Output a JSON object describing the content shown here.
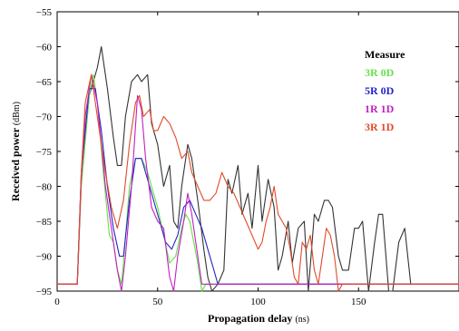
{
  "chart_data": {
    "type": "line",
    "xlabel": "Propagation delay",
    "xlabel_unit": "(ns)",
    "ylabel": "Received power",
    "ylabel_unit": "(dBm)",
    "xlim": [
      0,
      200
    ],
    "ylim": [
      -95,
      -55
    ],
    "xticks": [
      0,
      50,
      100,
      150
    ],
    "yticks": [
      -55,
      -60,
      -65,
      -70,
      -75,
      -80,
      -85,
      -90,
      -95
    ],
    "grid": false,
    "legend": {
      "title": "Measure",
      "placement": "top-right",
      "entries": [
        {
          "label": "3R 0D",
          "color": "#66e04a"
        },
        {
          "label": "5R 0D",
          "color": "#2424c8"
        },
        {
          "label": "1R 1D",
          "color": "#c020c0"
        },
        {
          "label": "3R 1D",
          "color": "#e04a2a"
        }
      ]
    },
    "series": [
      {
        "key": "measure",
        "color": "#333333",
        "points": [
          [
            0,
            -94
          ],
          [
            10,
            -94
          ],
          [
            12,
            -79
          ],
          [
            16,
            -67
          ],
          [
            20,
            -63
          ],
          [
            22,
            -60
          ],
          [
            25,
            -66
          ],
          [
            28,
            -73
          ],
          [
            30,
            -77
          ],
          [
            32,
            -77
          ],
          [
            34,
            -70
          ],
          [
            37,
            -65
          ],
          [
            40,
            -64
          ],
          [
            42,
            -65
          ],
          [
            45,
            -64
          ],
          [
            47,
            -71
          ],
          [
            50,
            -74
          ],
          [
            53,
            -80
          ],
          [
            56,
            -77
          ],
          [
            58,
            -85
          ],
          [
            60,
            -86
          ],
          [
            62,
            -80
          ],
          [
            65,
            -74
          ],
          [
            67,
            -76
          ],
          [
            70,
            -82
          ],
          [
            73,
            -89
          ],
          [
            75,
            -93
          ],
          [
            77,
            -95
          ],
          [
            80,
            -94
          ],
          [
            83,
            -92
          ],
          [
            85,
            -79
          ],
          [
            87,
            -81
          ],
          [
            90,
            -77
          ],
          [
            92,
            -84
          ],
          [
            95,
            -81
          ],
          [
            97,
            -86
          ],
          [
            100,
            -77
          ],
          [
            102,
            -85
          ],
          [
            105,
            -79
          ],
          [
            108,
            -83
          ],
          [
            110,
            -92
          ],
          [
            112,
            -90
          ],
          [
            115,
            -85
          ],
          [
            117,
            -91
          ],
          [
            120,
            -86
          ],
          [
            123,
            -85
          ],
          [
            125,
            -95
          ],
          [
            128,
            -84
          ],
          [
            130,
            -85
          ],
          [
            133,
            -82
          ],
          [
            135,
            -82
          ],
          [
            137,
            -83
          ],
          [
            140,
            -90
          ],
          [
            142,
            -92
          ],
          [
            145,
            -92
          ],
          [
            148,
            -86
          ],
          [
            150,
            -86
          ],
          [
            152,
            -85
          ],
          [
            155,
            -95
          ],
          [
            158,
            -88
          ],
          [
            160,
            -84
          ],
          [
            162,
            -84
          ],
          [
            165,
            -95
          ],
          [
            167,
            -95
          ],
          [
            170,
            -88
          ],
          [
            173,
            -86
          ],
          [
            176,
            -94
          ],
          [
            200,
            -94
          ]
        ]
      },
      {
        "key": "3R 0D",
        "color": "#66e04a",
        "points": [
          [
            0,
            -94
          ],
          [
            10,
            -94
          ],
          [
            12,
            -80
          ],
          [
            16,
            -67
          ],
          [
            18,
            -64
          ],
          [
            20,
            -68
          ],
          [
            23,
            -78
          ],
          [
            26,
            -87
          ],
          [
            28,
            -88
          ],
          [
            30,
            -92
          ],
          [
            32,
            -94
          ],
          [
            33,
            -91
          ],
          [
            36,
            -80
          ],
          [
            39,
            -76
          ],
          [
            42,
            -76
          ],
          [
            45,
            -78
          ],
          [
            48,
            -81
          ],
          [
            50,
            -83
          ],
          [
            53,
            -87
          ],
          [
            56,
            -91
          ],
          [
            59,
            -90
          ],
          [
            62,
            -86
          ],
          [
            64,
            -84
          ],
          [
            66,
            -85
          ],
          [
            68,
            -88
          ],
          [
            70,
            -91
          ],
          [
            72,
            -95
          ],
          [
            74,
            -94
          ],
          [
            200,
            -94
          ]
        ]
      },
      {
        "key": "5R 0D",
        "color": "#2424c8",
        "points": [
          [
            0,
            -94
          ],
          [
            10,
            -94
          ],
          [
            12,
            -78
          ],
          [
            16,
            -66
          ],
          [
            19,
            -66
          ],
          [
            22,
            -72
          ],
          [
            25,
            -80
          ],
          [
            28,
            -86
          ],
          [
            31,
            -90
          ],
          [
            33,
            -90
          ],
          [
            36,
            -82
          ],
          [
            39,
            -76
          ],
          [
            42,
            -76
          ],
          [
            45,
            -79
          ],
          [
            48,
            -82
          ],
          [
            51,
            -85
          ],
          [
            54,
            -88
          ],
          [
            57,
            -89
          ],
          [
            60,
            -87
          ],
          [
            63,
            -83
          ],
          [
            66,
            -82
          ],
          [
            69,
            -84
          ],
          [
            72,
            -86
          ],
          [
            75,
            -89
          ],
          [
            78,
            -92
          ],
          [
            80,
            -94
          ],
          [
            200,
            -94
          ]
        ]
      },
      {
        "key": "1R 1D",
        "color": "#c020c0",
        "points": [
          [
            0,
            -94
          ],
          [
            10,
            -94
          ],
          [
            12,
            -79
          ],
          [
            14,
            -70
          ],
          [
            17,
            -64
          ],
          [
            20,
            -68
          ],
          [
            24,
            -80
          ],
          [
            27,
            -86
          ],
          [
            30,
            -92
          ],
          [
            32,
            -95
          ],
          [
            34,
            -90
          ],
          [
            37,
            -80
          ],
          [
            40,
            -67
          ],
          [
            42,
            -69
          ],
          [
            44,
            -76
          ],
          [
            47,
            -83
          ],
          [
            50,
            -85
          ],
          [
            53,
            -86
          ],
          [
            56,
            -93
          ],
          [
            58,
            -95
          ],
          [
            60,
            -90
          ],
          [
            63,
            -85
          ],
          [
            65,
            -81
          ],
          [
            67,
            -84
          ],
          [
            70,
            -90
          ],
          [
            72,
            -94
          ],
          [
            200,
            -94
          ]
        ]
      },
      {
        "key": "3R 1D",
        "color": "#e04a2a",
        "points": [
          [
            0,
            -94
          ],
          [
            10,
            -94
          ],
          [
            12,
            -78
          ],
          [
            14,
            -68
          ],
          [
            17,
            -64
          ],
          [
            20,
            -70
          ],
          [
            24,
            -78
          ],
          [
            27,
            -83
          ],
          [
            30,
            -86
          ],
          [
            33,
            -82
          ],
          [
            36,
            -74
          ],
          [
            39,
            -68
          ],
          [
            41,
            -67
          ],
          [
            43,
            -70
          ],
          [
            46,
            -69
          ],
          [
            48,
            -72
          ],
          [
            50,
            -72
          ],
          [
            53,
            -70
          ],
          [
            56,
            -71
          ],
          [
            59,
            -73
          ],
          [
            62,
            -76
          ],
          [
            65,
            -75
          ],
          [
            67,
            -78
          ],
          [
            70,
            -80
          ],
          [
            73,
            -82
          ],
          [
            76,
            -82
          ],
          [
            79,
            -81
          ],
          [
            82,
            -78
          ],
          [
            85,
            -80
          ],
          [
            88,
            -81
          ],
          [
            91,
            -83
          ],
          [
            94,
            -85
          ],
          [
            97,
            -87
          ],
          [
            100,
            -89
          ],
          [
            102,
            -88
          ],
          [
            104,
            -85
          ],
          [
            106,
            -83
          ],
          [
            108,
            -80
          ],
          [
            110,
            -84
          ],
          [
            112,
            -85
          ],
          [
            114,
            -86
          ],
          [
            116,
            -89
          ],
          [
            118,
            -93
          ],
          [
            120,
            -94
          ],
          [
            122,
            -88
          ],
          [
            124,
            -89
          ],
          [
            126,
            -87
          ],
          [
            128,
            -92
          ],
          [
            130,
            -94
          ],
          [
            132,
            -90
          ],
          [
            134,
            -86
          ],
          [
            136,
            -87
          ],
          [
            138,
            -90
          ],
          [
            140,
            -95
          ],
          [
            142,
            -94
          ],
          [
            200,
            -94
          ]
        ]
      }
    ]
  }
}
